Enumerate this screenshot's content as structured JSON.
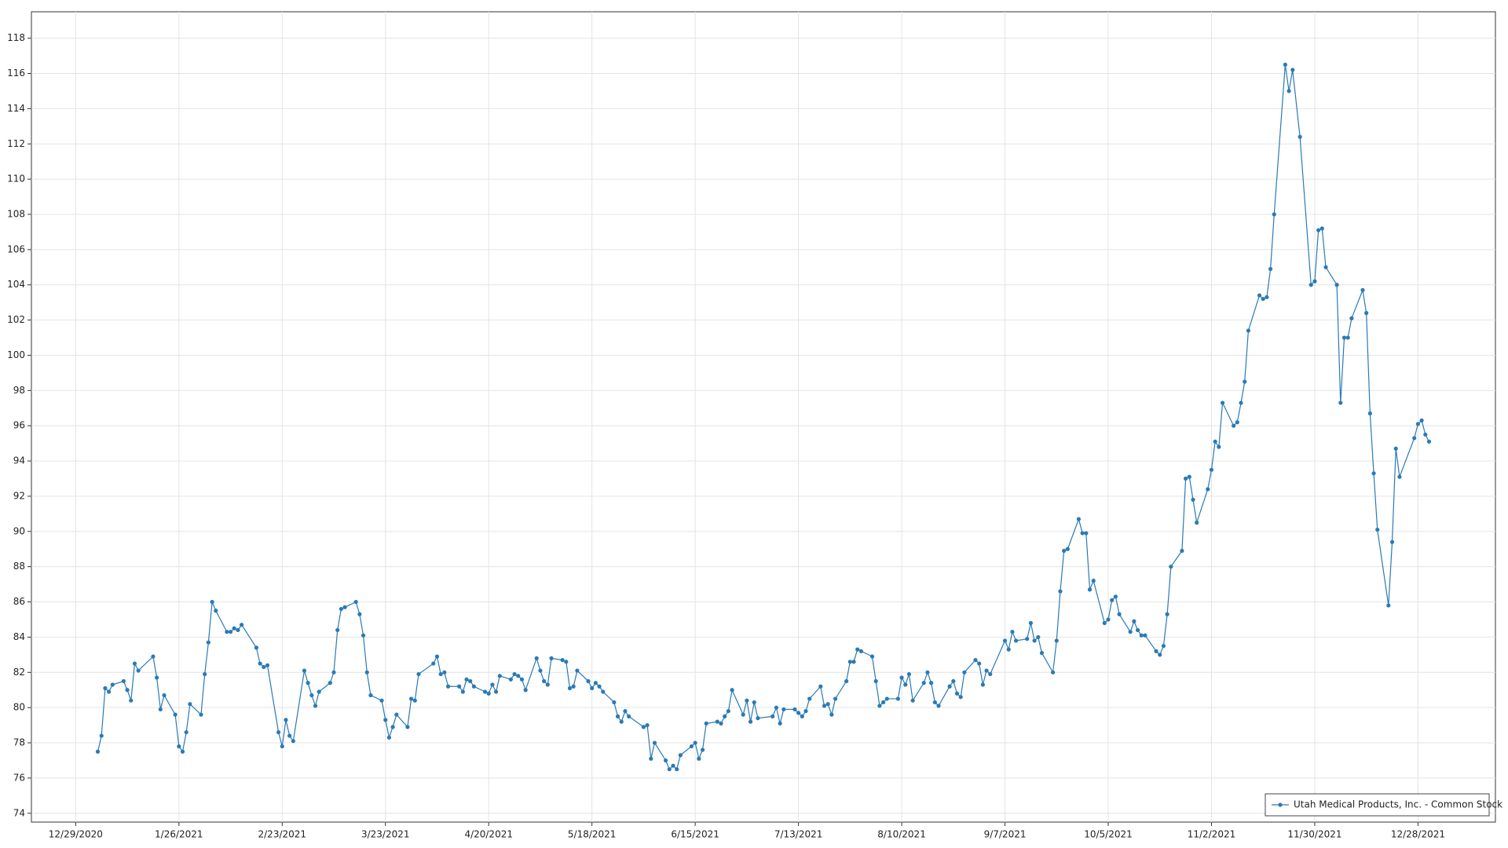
{
  "chart_data": {
    "type": "line",
    "x": [
      "1/4/2021",
      "1/5/2021",
      "1/6/2021",
      "1/7/2021",
      "1/8/2021",
      "1/11/2021",
      "1/12/2021",
      "1/13/2021",
      "1/14/2021",
      "1/15/2021",
      "1/19/2021",
      "1/20/2021",
      "1/21/2021",
      "1/22/2021",
      "1/25/2021",
      "1/26/2021",
      "1/27/2021",
      "1/28/2021",
      "1/29/2021",
      "2/1/2021",
      "2/2/2021",
      "2/3/2021",
      "2/4/2021",
      "2/5/2021",
      "2/8/2021",
      "2/9/2021",
      "2/10/2021",
      "2/11/2021",
      "2/12/2021",
      "2/16/2021",
      "2/17/2021",
      "2/18/2021",
      "2/19/2021",
      "2/22/2021",
      "2/23/2021",
      "2/24/2021",
      "2/25/2021",
      "2/26/2021",
      "3/1/2021",
      "3/2/2021",
      "3/3/2021",
      "3/4/2021",
      "3/5/2021",
      "3/8/2021",
      "3/9/2021",
      "3/10/2021",
      "3/11/2021",
      "3/12/2021",
      "3/15/2021",
      "3/16/2021",
      "3/17/2021",
      "3/18/2021",
      "3/19/2021",
      "3/22/2021",
      "3/23/2021",
      "3/24/2021",
      "3/25/2021",
      "3/26/2021",
      "3/29/2021",
      "3/30/2021",
      "3/31/2021",
      "4/1/2021",
      "4/5/2021",
      "4/6/2021",
      "4/7/2021",
      "4/8/2021",
      "4/9/2021",
      "4/12/2021",
      "4/13/2021",
      "4/14/2021",
      "4/15/2021",
      "4/16/2021",
      "4/19/2021",
      "4/20/2021",
      "4/21/2021",
      "4/22/2021",
      "4/23/2021",
      "4/26/2021",
      "4/27/2021",
      "4/28/2021",
      "4/29/2021",
      "4/30/2021",
      "5/3/2021",
      "5/4/2021",
      "5/5/2021",
      "5/6/2021",
      "5/7/2021",
      "5/10/2021",
      "5/11/2021",
      "5/12/2021",
      "5/13/2021",
      "5/14/2021",
      "5/17/2021",
      "5/18/2021",
      "5/19/2021",
      "5/20/2021",
      "5/21/2021",
      "5/24/2021",
      "5/25/2021",
      "5/26/2021",
      "5/27/2021",
      "5/28/2021",
      "6/1/2021",
      "6/2/2021",
      "6/3/2021",
      "6/4/2021",
      "6/7/2021",
      "6/8/2021",
      "6/9/2021",
      "6/10/2021",
      "6/11/2021",
      "6/14/2021",
      "6/15/2021",
      "6/16/2021",
      "6/17/2021",
      "6/18/2021",
      "6/21/2021",
      "6/22/2021",
      "6/23/2021",
      "6/24/2021",
      "6/25/2021",
      "6/28/2021",
      "6/29/2021",
      "6/30/2021",
      "7/1/2021",
      "7/2/2021",
      "7/6/2021",
      "7/7/2021",
      "7/8/2021",
      "7/9/2021",
      "7/12/2021",
      "7/13/2021",
      "7/14/2021",
      "7/15/2021",
      "7/16/2021",
      "7/19/2021",
      "7/20/2021",
      "7/21/2021",
      "7/22/2021",
      "7/23/2021",
      "7/26/2021",
      "7/27/2021",
      "7/28/2021",
      "7/29/2021",
      "7/30/2021",
      "8/2/2021",
      "8/3/2021",
      "8/4/2021",
      "8/5/2021",
      "8/6/2021",
      "8/9/2021",
      "8/10/2021",
      "8/11/2021",
      "8/12/2021",
      "8/13/2021",
      "8/16/2021",
      "8/17/2021",
      "8/18/2021",
      "8/19/2021",
      "8/20/2021",
      "8/23/2021",
      "8/24/2021",
      "8/25/2021",
      "8/26/2021",
      "8/27/2021",
      "8/30/2021",
      "8/31/2021",
      "9/1/2021",
      "9/2/2021",
      "9/3/2021",
      "9/7/2021",
      "9/8/2021",
      "9/9/2021",
      "9/10/2021",
      "9/13/2021",
      "9/14/2021",
      "9/15/2021",
      "9/16/2021",
      "9/17/2021",
      "9/20/2021",
      "9/21/2021",
      "9/22/2021",
      "9/23/2021",
      "9/24/2021",
      "9/27/2021",
      "9/28/2021",
      "9/29/2021",
      "9/30/2021",
      "10/1/2021",
      "10/4/2021",
      "10/5/2021",
      "10/6/2021",
      "10/7/2021",
      "10/8/2021",
      "10/11/2021",
      "10/12/2021",
      "10/13/2021",
      "10/14/2021",
      "10/15/2021",
      "10/18/2021",
      "10/19/2021",
      "10/20/2021",
      "10/21/2021",
      "10/22/2021",
      "10/25/2021",
      "10/26/2021",
      "10/27/2021",
      "10/28/2021",
      "10/29/2021",
      "11/1/2021",
      "11/2/2021",
      "11/3/2021",
      "11/4/2021",
      "11/5/2021",
      "11/8/2021",
      "11/9/2021",
      "11/10/2021",
      "11/11/2021",
      "11/12/2021",
      "11/15/2021",
      "11/16/2021",
      "11/17/2021",
      "11/18/2021",
      "11/19/2021",
      "11/22/2021",
      "11/23/2021",
      "11/24/2021",
      "11/26/2021",
      "11/29/2021",
      "11/30/2021",
      "12/1/2021",
      "12/2/2021",
      "12/3/2021",
      "12/6/2021",
      "12/7/2021",
      "12/8/2021",
      "12/9/2021",
      "12/10/2021",
      "12/13/2021",
      "12/14/2021",
      "12/15/2021",
      "12/16/2021",
      "12/17/2021",
      "12/20/2021",
      "12/21/2021",
      "12/22/2021",
      "12/23/2021",
      "12/27/2021",
      "12/28/2021",
      "12/29/2021",
      "12/30/2021",
      "12/31/2021"
    ],
    "series": [
      {
        "name": "Utah Medical Products, Inc. - Common Stock",
        "color": "#2a7ab5",
        "values": [
          77.5,
          78.4,
          81.1,
          80.9,
          81.3,
          81.5,
          81.0,
          80.4,
          82.5,
          82.1,
          82.9,
          81.7,
          79.9,
          80.7,
          79.6,
          77.8,
          77.5,
          78.6,
          80.2,
          79.6,
          81.9,
          83.7,
          86.0,
          85.5,
          84.3,
          84.3,
          84.5,
          84.4,
          84.7,
          83.4,
          82.5,
          82.3,
          82.4,
          78.6,
          77.8,
          79.3,
          78.4,
          78.1,
          82.1,
          81.4,
          80.7,
          80.1,
          80.9,
          81.4,
          82.0,
          84.4,
          85.6,
          85.7,
          86.0,
          85.3,
          84.1,
          82.0,
          80.7,
          80.4,
          79.3,
          78.3,
          78.9,
          79.6,
          78.9,
          80.5,
          80.4,
          81.9,
          82.5,
          82.9,
          81.9,
          82.0,
          81.2,
          81.2,
          80.9,
          81.6,
          81.5,
          81.2,
          80.9,
          80.8,
          81.3,
          80.9,
          81.8,
          81.6,
          81.9,
          81.8,
          81.6,
          81.0,
          82.8,
          82.1,
          81.5,
          81.3,
          82.8,
          82.7,
          82.6,
          81.1,
          81.2,
          82.1,
          81.5,
          81.1,
          81.4,
          81.2,
          80.9,
          80.3,
          79.5,
          79.2,
          79.8,
          79.5,
          78.9,
          79.0,
          77.1,
          78.0,
          77.0,
          76.5,
          76.7,
          76.5,
          77.3,
          77.8,
          78.0,
          77.1,
          77.6,
          79.1,
          79.2,
          79.1,
          79.5,
          79.8,
          81.0,
          79.6,
          80.4,
          79.2,
          80.3,
          79.4,
          79.5,
          80.0,
          79.1,
          79.9,
          79.9,
          79.7,
          79.5,
          79.8,
          80.5,
          81.2,
          80.1,
          80.2,
          79.6,
          80.5,
          81.5,
          82.6,
          82.6,
          83.3,
          83.2,
          82.9,
          81.5,
          80.1,
          80.3,
          80.5,
          80.5,
          81.7,
          81.3,
          81.9,
          80.4,
          81.4,
          82.0,
          81.4,
          80.3,
          80.1,
          81.2,
          81.5,
          80.8,
          80.6,
          82.0,
          82.7,
          82.5,
          81.3,
          82.1,
          81.9,
          83.8,
          83.3,
          84.3,
          83.8,
          83.9,
          84.8,
          83.8,
          84.0,
          83.1,
          82.0,
          83.8,
          86.6,
          88.9,
          89.0,
          90.7,
          89.9,
          89.9,
          86.7,
          87.2,
          84.8,
          85.0,
          86.1,
          86.3,
          85.3,
          84.3,
          84.9,
          84.4,
          84.1,
          84.1,
          83.2,
          83.0,
          83.5,
          85.3,
          88.0,
          88.9,
          93.0,
          93.1,
          91.8,
          90.5,
          92.4,
          93.5,
          95.1,
          94.8,
          97.3,
          96.0,
          96.2,
          97.3,
          98.5,
          101.4,
          103.4,
          103.2,
          103.3,
          104.9,
          108.0,
          116.5,
          115.0,
          116.2,
          112.4,
          104.0,
          104.2,
          107.1,
          107.2,
          105.0,
          104.0,
          97.3,
          101.0,
          101.0,
          102.1,
          103.7,
          102.4,
          96.7,
          93.3,
          90.1,
          85.8,
          89.4,
          94.7,
          93.1,
          95.3,
          96.1,
          96.3,
          95.5,
          95.1
        ]
      }
    ],
    "xlim": [
      "12/17/2020",
      "1/18/2022"
    ],
    "xticks": [
      "12/29/2020",
      "1/26/2021",
      "2/23/2021",
      "3/23/2021",
      "4/20/2021",
      "5/18/2021",
      "6/15/2021",
      "7/13/2021",
      "8/10/2021",
      "9/7/2021",
      "10/5/2021",
      "11/2/2021",
      "11/30/2021",
      "12/28/2021"
    ],
    "ylim": [
      73.5,
      119.5
    ],
    "yticks": [
      74,
      76,
      78,
      80,
      82,
      84,
      86,
      88,
      90,
      92,
      94,
      96,
      98,
      100,
      102,
      104,
      106,
      108,
      110,
      112,
      114,
      116,
      118
    ],
    "grid": true,
    "legend": "lower right"
  }
}
